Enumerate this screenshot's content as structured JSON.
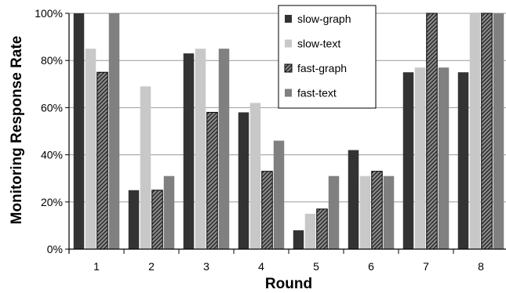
{
  "chart_data": {
    "type": "bar",
    "title": "",
    "xlabel": "Round",
    "ylabel": "Monitoring Response Rate",
    "categories": [
      "1",
      "2",
      "3",
      "4",
      "5",
      "6",
      "7",
      "8"
    ],
    "ylim": [
      0,
      100
    ],
    "yticks": [
      0,
      20,
      40,
      60,
      80,
      100
    ],
    "ytick_labels": [
      "0%",
      "20%",
      "40%",
      "60%",
      "80%",
      "100%"
    ],
    "grid": true,
    "legend_position": "top-right",
    "series": [
      {
        "name": "slow-graph",
        "values": [
          100,
          25,
          83,
          58,
          8,
          42,
          75,
          75
        ],
        "color": "#333333",
        "pattern": "solid"
      },
      {
        "name": "slow-text",
        "values": [
          85,
          69,
          85,
          62,
          15,
          31,
          77,
          100
        ],
        "color": "#c8c8c8",
        "pattern": "solid"
      },
      {
        "name": "fast-graph",
        "values": [
          75,
          25,
          58,
          33,
          17,
          33,
          100,
          100
        ],
        "color": "#888888",
        "pattern": "hatch"
      },
      {
        "name": "fast-text",
        "values": [
          100,
          31,
          85,
          46,
          31,
          31,
          77,
          100
        ],
        "color": "#808080",
        "pattern": "solid"
      }
    ]
  }
}
